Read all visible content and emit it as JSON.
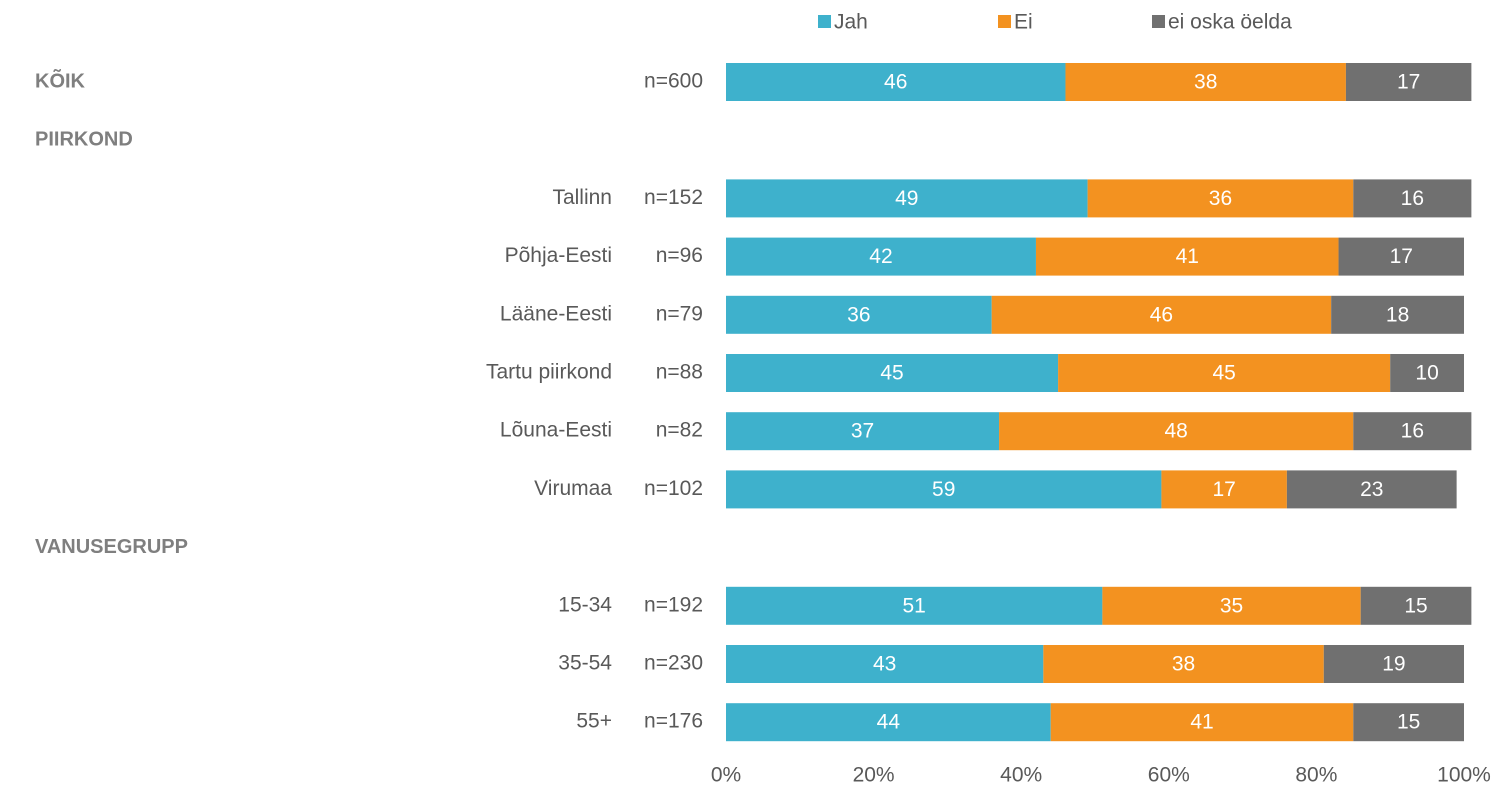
{
  "chart_data": {
    "type": "bar",
    "orientation": "horizontal",
    "stacked": true,
    "groups": [
      {
        "label": "KÕIK",
        "categories": [
          null
        ],
        "n_labels": [
          "n=600"
        ]
      },
      {
        "label": "PIIRKOND",
        "categories": [
          "Tallinn",
          "Põhja-Eesti",
          "Lääne-Eesti",
          "Tartu piirkond",
          "Lõuna-Eesti",
          "Virumaa"
        ],
        "n_labels": [
          "n=152",
          "n=96",
          "n=79",
          "n=88",
          "n=82",
          "n=102"
        ]
      },
      {
        "label": "VANUSEGRUPP",
        "categories": [
          "15-34",
          "35-54",
          "55+"
        ],
        "n_labels": [
          "n=192",
          "n=230",
          "n=176"
        ]
      }
    ],
    "series": [
      {
        "name": "Jah",
        "color": "#3eb1cc",
        "values": [
          46,
          49,
          42,
          36,
          45,
          37,
          59,
          51,
          43,
          44
        ]
      },
      {
        "name": "Ei",
        "color": "#f39220",
        "values": [
          38,
          36,
          41,
          46,
          45,
          48,
          17,
          35,
          38,
          41
        ]
      },
      {
        "name": "ei oska öelda",
        "color": "#707070",
        "values": [
          17,
          16,
          17,
          18,
          10,
          16,
          23,
          15,
          19,
          15
        ]
      }
    ],
    "xlim": [
      0,
      100
    ],
    "xticks": [
      {
        "value": 0,
        "label": "0%"
      },
      {
        "value": 20,
        "label": "20%"
      },
      {
        "value": 40,
        "label": "40%"
      },
      {
        "value": 60,
        "label": "60%"
      },
      {
        "value": 80,
        "label": "80%"
      },
      {
        "value": 100,
        "label": "100%"
      }
    ],
    "legend": "top"
  }
}
